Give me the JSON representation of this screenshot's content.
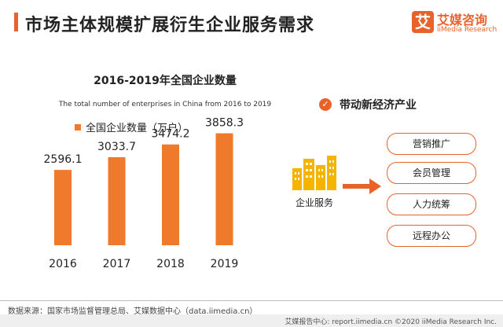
{
  "page": {
    "title": "市场主体规模扩展衍生企业服务需求"
  },
  "logo": {
    "mark": "艾",
    "cn": "艾媒咨询",
    "en": "iiMedia Research"
  },
  "chart_data": {
    "type": "bar",
    "title": "2016-2019年全国企业数量",
    "subtitle": "The total number of enterprises in China from 2016 to 2019",
    "categories": [
      "2016",
      "2017",
      "2018",
      "2019"
    ],
    "series": [
      {
        "name": "全国企业数量（万户）",
        "values": [
          2596.1,
          3033.7,
          3474.2,
          3858.3
        ]
      }
    ],
    "data_labels": [
      "2596.1",
      "3033.7",
      "3474.2",
      "3858.3"
    ],
    "ylim": [
      0,
      4000
    ],
    "grid": false,
    "legend_position": "top-left",
    "bar_color": "#f07a2b"
  },
  "right_panel": {
    "heading": "带动新经济产业",
    "check_icon": "check-circle-icon",
    "building_icon": "buildings-icon",
    "arrow_icon": "arrow-right-icon",
    "enterprise_label": "企业服务",
    "services": [
      "营销推广",
      "会员管理",
      "人力统筹",
      "远程办公"
    ]
  },
  "source": "数据来源：国家市场监督管理总局、艾媒数据中心（data.iimedia.cn）",
  "footer": "艾媒报告中心: report.iimedia.cn ©2020 iiMedia Research Inc.",
  "colors": {
    "accent": "#e8632a",
    "bar": "#f07a2b",
    "building": "#f5b400"
  }
}
